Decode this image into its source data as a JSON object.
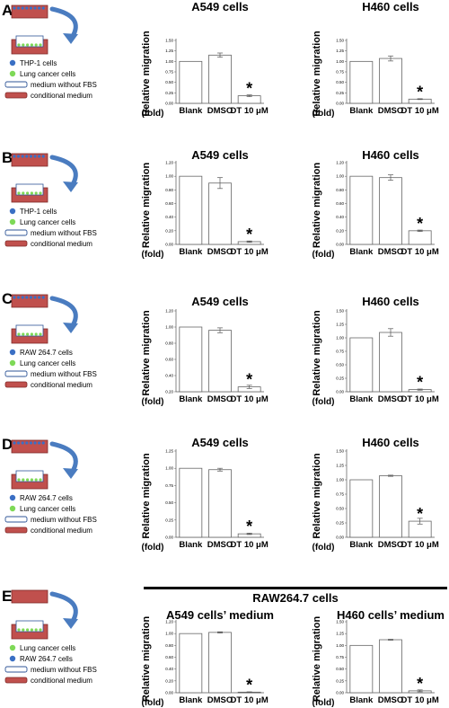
{
  "panels": [
    {
      "letter": "A",
      "legend": [
        "THP-1 cells",
        "Lung cancer cells",
        "medium without FBS",
        "conditional medium"
      ]
    },
    {
      "letter": "B",
      "legend": [
        "THP-1 cells",
        "Lung cancer cells",
        "medium without FBS",
        "conditional medium"
      ]
    },
    {
      "letter": "C",
      "legend": [
        "RAW 264.7 cells",
        "Lung cancer cells",
        "medium without FBS",
        "conditional medium"
      ]
    },
    {
      "letter": "D",
      "legend": [
        "RAW 264.7 cells",
        "Lung cancer cells",
        "medium without FBS",
        "conditional medium"
      ]
    },
    {
      "letter": "E",
      "legend": [
        "Lung cancer cells",
        "RAW 264.7 cells",
        "medium without FBS",
        "conditional medium"
      ]
    }
  ],
  "legend_colors": {
    "dot1": "#3a6fc4",
    "dot2": "#7ed957",
    "medium_fill": "#ffffff",
    "medium_stroke": "#2f5597",
    "cond_fill": "#c0504d",
    "arrow": "#4a7cc0"
  },
  "panel_e_header": "RAW264.7 cells",
  "common": {
    "ylabel": "Relative migration",
    "fold": "(fold)",
    "star": "*"
  },
  "chart_data": [
    {
      "type": "bar",
      "title": "A549 cells",
      "categories": [
        "Blank",
        "DMSO",
        "DT 10 μM"
      ],
      "values": [
        1.0,
        1.15,
        0.18
      ],
      "errors": [
        0.0,
        0.05,
        0.02
      ],
      "ylim": [
        0,
        1.5
      ],
      "yticks": [
        "0.00",
        "0.25",
        "0.50",
        "0.75",
        "1.00",
        "1.25",
        "1.50"
      ],
      "significant": [
        false,
        false,
        true
      ]
    },
    {
      "type": "bar",
      "title": "H460 cells",
      "categories": [
        "Blank",
        "DMSO",
        "DT 10 μM"
      ],
      "values": [
        1.0,
        1.07,
        0.1
      ],
      "errors": [
        0.0,
        0.06,
        0.01
      ],
      "ylim": [
        0,
        1.5
      ],
      "yticks": [
        "0.00",
        "0.25",
        "0.50",
        "0.75",
        "1.00",
        "1.25",
        "1.50"
      ],
      "significant": [
        false,
        false,
        true
      ]
    },
    {
      "type": "bar",
      "title": "A549 cells",
      "categories": [
        "Blank",
        "DMSO",
        "DT 10 μM"
      ],
      "values": [
        1.0,
        0.9,
        0.04
      ],
      "errors": [
        0.0,
        0.08,
        0.01
      ],
      "ylim": [
        0,
        1.2
      ],
      "yticks": [
        "0.00",
        "0.20",
        "0.40",
        "0.60",
        "0.80",
        "1.00",
        "1.20"
      ],
      "significant": [
        false,
        false,
        true
      ]
    },
    {
      "type": "bar",
      "title": "H460 cells",
      "categories": [
        "Blank",
        "DMSO",
        "DT 10 μM"
      ],
      "values": [
        1.0,
        0.98,
        0.2
      ],
      "errors": [
        0.0,
        0.04,
        0.01
      ],
      "ylim": [
        0,
        1.2
      ],
      "yticks": [
        "0.00",
        "0.20",
        "0.40",
        "0.60",
        "0.80",
        "1.00",
        "1.20"
      ],
      "significant": [
        false,
        false,
        true
      ]
    },
    {
      "type": "bar",
      "title": "A549 cells",
      "categories": [
        "Blank",
        "DMSO",
        "DT 10 μM"
      ],
      "values": [
        1.0,
        0.96,
        0.26
      ],
      "errors": [
        0.0,
        0.03,
        0.02
      ],
      "ylim": [
        0.2,
        1.2
      ],
      "yticks": [
        "0.20",
        "0.40",
        "0.60",
        "0.80",
        "1.00",
        "1.20"
      ],
      "significant": [
        false,
        false,
        true
      ]
    },
    {
      "type": "bar",
      "title": "H460 cells",
      "categories": [
        "Blank",
        "DMSO",
        "DT 10 μM"
      ],
      "values": [
        1.0,
        1.1,
        0.04
      ],
      "errors": [
        0.0,
        0.07,
        0.01
      ],
      "ylim": [
        0,
        1.5
      ],
      "yticks": [
        "0.00",
        "0.25",
        "0.50",
        "0.75",
        "1.00",
        "1.25",
        "1.50"
      ],
      "significant": [
        false,
        false,
        true
      ]
    },
    {
      "type": "bar",
      "title": "A549 cells",
      "categories": [
        "Blank",
        "DMSO",
        "DT 10 μM"
      ],
      "values": [
        1.0,
        0.98,
        0.05
      ],
      "errors": [
        0.0,
        0.02,
        0.01
      ],
      "ylim": [
        0,
        1.25
      ],
      "yticks": [
        "0.00",
        "0.25",
        "0.50",
        "0.75",
        "1.00",
        "1.25"
      ],
      "significant": [
        false,
        false,
        true
      ]
    },
    {
      "type": "bar",
      "title": "H460 cells",
      "categories": [
        "Blank",
        "DMSO",
        "DT 10 μM"
      ],
      "values": [
        1.0,
        1.07,
        0.28
      ],
      "errors": [
        0.0,
        0.01,
        0.05
      ],
      "ylim": [
        0,
        1.5
      ],
      "yticks": [
        "0.00",
        "0.25",
        "0.50",
        "0.75",
        "1.00",
        "1.25",
        "1.50"
      ],
      "significant": [
        false,
        false,
        true
      ]
    },
    {
      "type": "bar",
      "title": "A549 cells’ medium",
      "categories": [
        "Blank",
        "DMSO",
        "DT 10 μM"
      ],
      "values": [
        1.0,
        1.02,
        0.01
      ],
      "errors": [
        0.0,
        0.01,
        0.005
      ],
      "ylim": [
        0,
        1.2
      ],
      "yticks": [
        "0.00",
        "0.20",
        "0.40",
        "0.60",
        "0.80",
        "1.00",
        "1.20"
      ],
      "significant": [
        false,
        false,
        true
      ]
    },
    {
      "type": "bar",
      "title": "H460 cells’ medium",
      "categories": [
        "Blank",
        "DMSO",
        "DT 10 μM"
      ],
      "values": [
        1.0,
        1.12,
        0.04
      ],
      "errors": [
        0.0,
        0.01,
        0.02
      ],
      "ylim": [
        0,
        1.5
      ],
      "yticks": [
        "0.00",
        "0.25",
        "0.50",
        "0.75",
        "1.00",
        "1.25",
        "1.50"
      ],
      "significant": [
        false,
        false,
        true
      ]
    }
  ]
}
